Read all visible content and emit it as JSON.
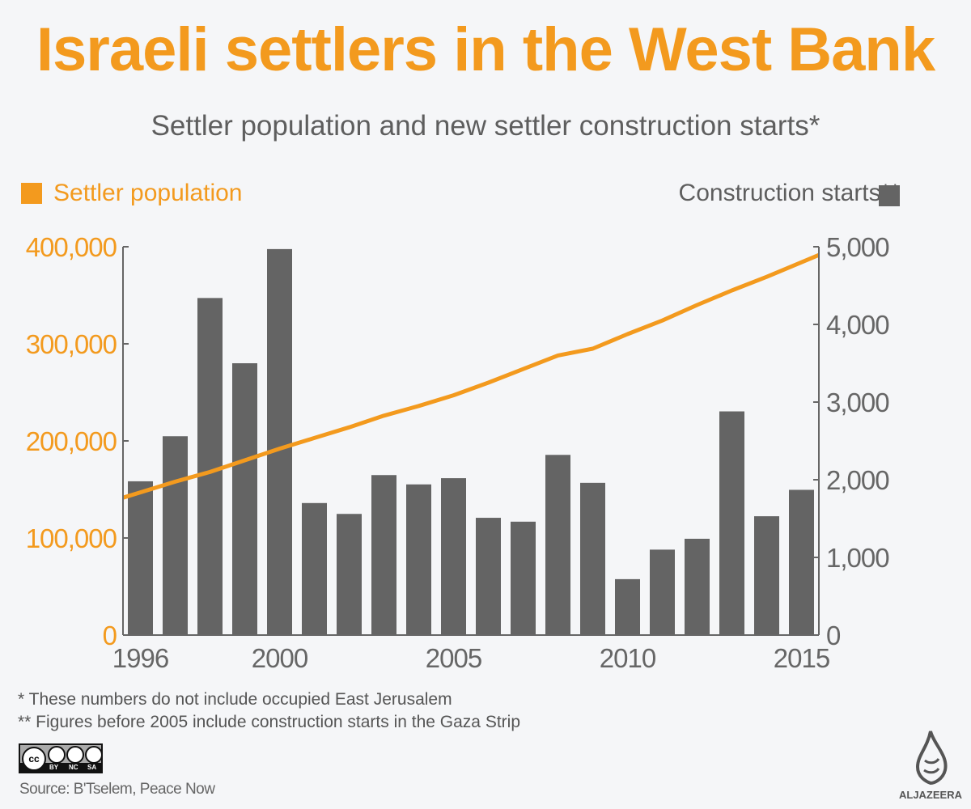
{
  "title": "Israeli settlers in the West Bank",
  "subtitle": "Settler population and new settler construction starts*",
  "colors": {
    "population": "#f39a1e",
    "construction": "#646464",
    "axis": "#666666"
  },
  "chart_data": {
    "type": "bar+line",
    "title": "Israeli settlers in the West Bank",
    "subtitle": "Settler population and new settler construction starts*",
    "x": [
      1996,
      1997,
      1998,
      1999,
      2000,
      2001,
      2002,
      2003,
      2004,
      2005,
      2006,
      2007,
      2008,
      2009,
      2010,
      2011,
      2012,
      2013,
      2014,
      2015
    ],
    "x_tick_labels": [
      "1996",
      "2000",
      "2005",
      "2010",
      "2015"
    ],
    "legend_placement": "top",
    "grid": false,
    "series": [
      {
        "name": "Settler population",
        "type": "line",
        "axis": "left",
        "color": "#f39a1e",
        "values": [
          147000,
          158000,
          168000,
          180000,
          192000,
          203000,
          214000,
          226000,
          236000,
          247000,
          260000,
          274000,
          288000,
          295000,
          310000,
          324000,
          340000,
          355000,
          369000,
          384000
        ]
      },
      {
        "name": "Construction starts**",
        "type": "bar",
        "axis": "right",
        "color": "#646464",
        "values": [
          1980,
          2560,
          4340,
          3500,
          4970,
          1700,
          1560,
          2060,
          1940,
          2020,
          1510,
          1460,
          2320,
          1960,
          720,
          1100,
          1240,
          2880,
          1530,
          1870
        ]
      }
    ],
    "left_axis": {
      "range": [
        0,
        400000
      ],
      "ticks": [
        "0",
        "100,000",
        "200,000",
        "300,000",
        "400,000"
      ]
    },
    "right_axis": {
      "range": [
        0,
        5000
      ],
      "ticks": [
        "0",
        "1,000",
        "2,000",
        "3,000",
        "4,000",
        "5,000"
      ]
    }
  },
  "footnotes": [
    "* These numbers do not include occupied East Jerusalem",
    "** Figures before 2005 include construction starts in the Gaza Strip"
  ],
  "license": {
    "labels": [
      "BY",
      "NC",
      "SA"
    ],
    "icon": "creative-commons-badge"
  },
  "source": "Source: B'Tselem, Peace Now",
  "logo": {
    "text": "ALJAZEERA",
    "icon": "al-jazeera-calligraphy-logo"
  }
}
